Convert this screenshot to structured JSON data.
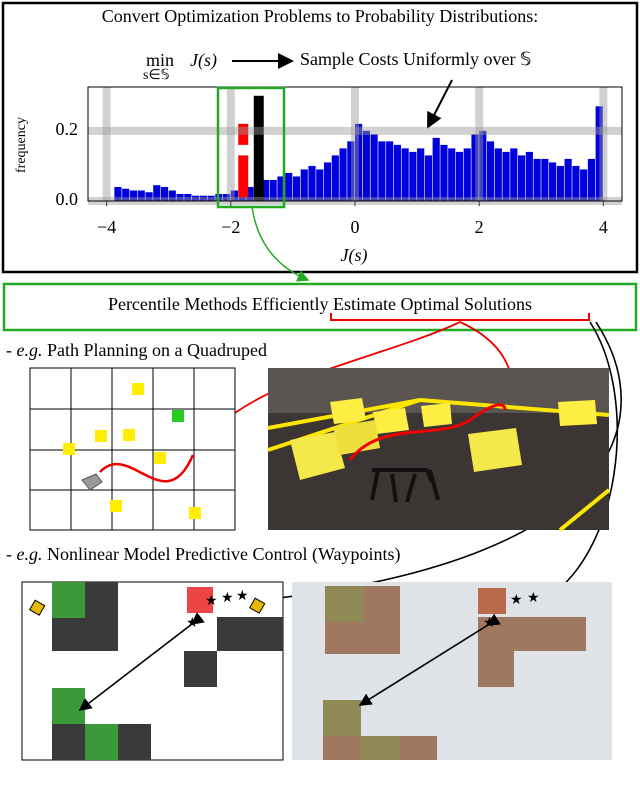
{
  "header": {
    "title": "Convert Optimization Problems to Probability Distributions:",
    "min": "min",
    "min_sub": "s∈𝕊",
    "objective": "J(s)",
    "sample_text": "Sample Costs Uniformly over 𝕊"
  },
  "chart_data": {
    "type": "histogram",
    "xlabel": "J(s)",
    "ylabel": "frequency",
    "color": "#0000dd",
    "grid": true,
    "bins": [
      -3.875,
      -3.75,
      -3.625,
      -3.5,
      -3.375,
      -3.25,
      -3.125,
      -3,
      -2.875,
      -2.75,
      -2.625,
      -2.5,
      -2.375,
      -2.25,
      -2.125,
      -2,
      -1.875,
      -1.75,
      -1.625,
      -1.5,
      -1.375,
      -1.25,
      -1.125,
      -1,
      -0.875,
      -0.75,
      -0.625,
      -0.5,
      -0.375,
      -0.25,
      -0.125,
      0,
      0.125,
      0.25,
      0.375,
      0.5,
      0.625,
      0.75,
      0.875,
      1,
      1.125,
      1.25,
      1.375,
      1.5,
      1.625,
      1.75,
      1.875,
      2,
      2.125,
      2.25,
      2.375,
      2.5,
      2.625,
      2.75,
      2.875,
      3,
      3.125,
      3.25,
      3.375,
      3.5,
      3.625,
      3.75,
      3.875,
      4
    ],
    "values": [
      0.04,
      0.035,
      0.03,
      0.03,
      0.025,
      0.045,
      0.04,
      0.03,
      0.02,
      0.02,
      0.015,
      0.015,
      0.015,
      0.02,
      0.02,
      0.03,
      0.035,
      0.04,
      0.05,
      0.06,
      0.06,
      0.07,
      0.08,
      0.07,
      0.09,
      0.1,
      0.09,
      0.11,
      0.13,
      0.15,
      0.17,
      0.22,
      0.2,
      0.19,
      0.17,
      0.17,
      0.16,
      0.15,
      0.14,
      0.15,
      0.13,
      0.18,
      0.16,
      0.15,
      0.14,
      0.15,
      0.19,
      0.2,
      0.17,
      0.15,
      0.14,
      0.15,
      0.13,
      0.14,
      0.12,
      0.12,
      0.11,
      0.1,
      0.12,
      0.1,
      0.09,
      0.12,
      0.27
    ],
    "highlights": [
      {
        "color": "#ff0000",
        "x": -1.8,
        "segments": [
          [
            0.01,
            0.13
          ],
          [
            0.16,
            0.22
          ]
        ]
      },
      {
        "color": "#000000",
        "x": -1.55,
        "segments": [
          [
            0,
            0.3
          ]
        ]
      }
    ],
    "xlim": [
      -4.3,
      4.3
    ],
    "ylim": [
      0,
      0.325
    ],
    "xticks": [
      {
        "value": -4,
        "label": "−4"
      },
      {
        "value": -2,
        "label": "−2"
      },
      0,
      2,
      4
    ],
    "yticks": [
      {
        "value": 0,
        "label": "0.0"
      },
      {
        "value": 0.2,
        "label": "0.2"
      }
    ]
  },
  "banner": "Percentile Methods Efficiently Estimate Optimal Solutions",
  "section1": {
    "prefix": "-",
    "eg": "e.g.",
    "text": "Path Planning on a Quadruped"
  },
  "section2": {
    "prefix": "-",
    "eg": "e.g.",
    "text": "Nonlinear Model Predictive Control (Waypoints)"
  }
}
